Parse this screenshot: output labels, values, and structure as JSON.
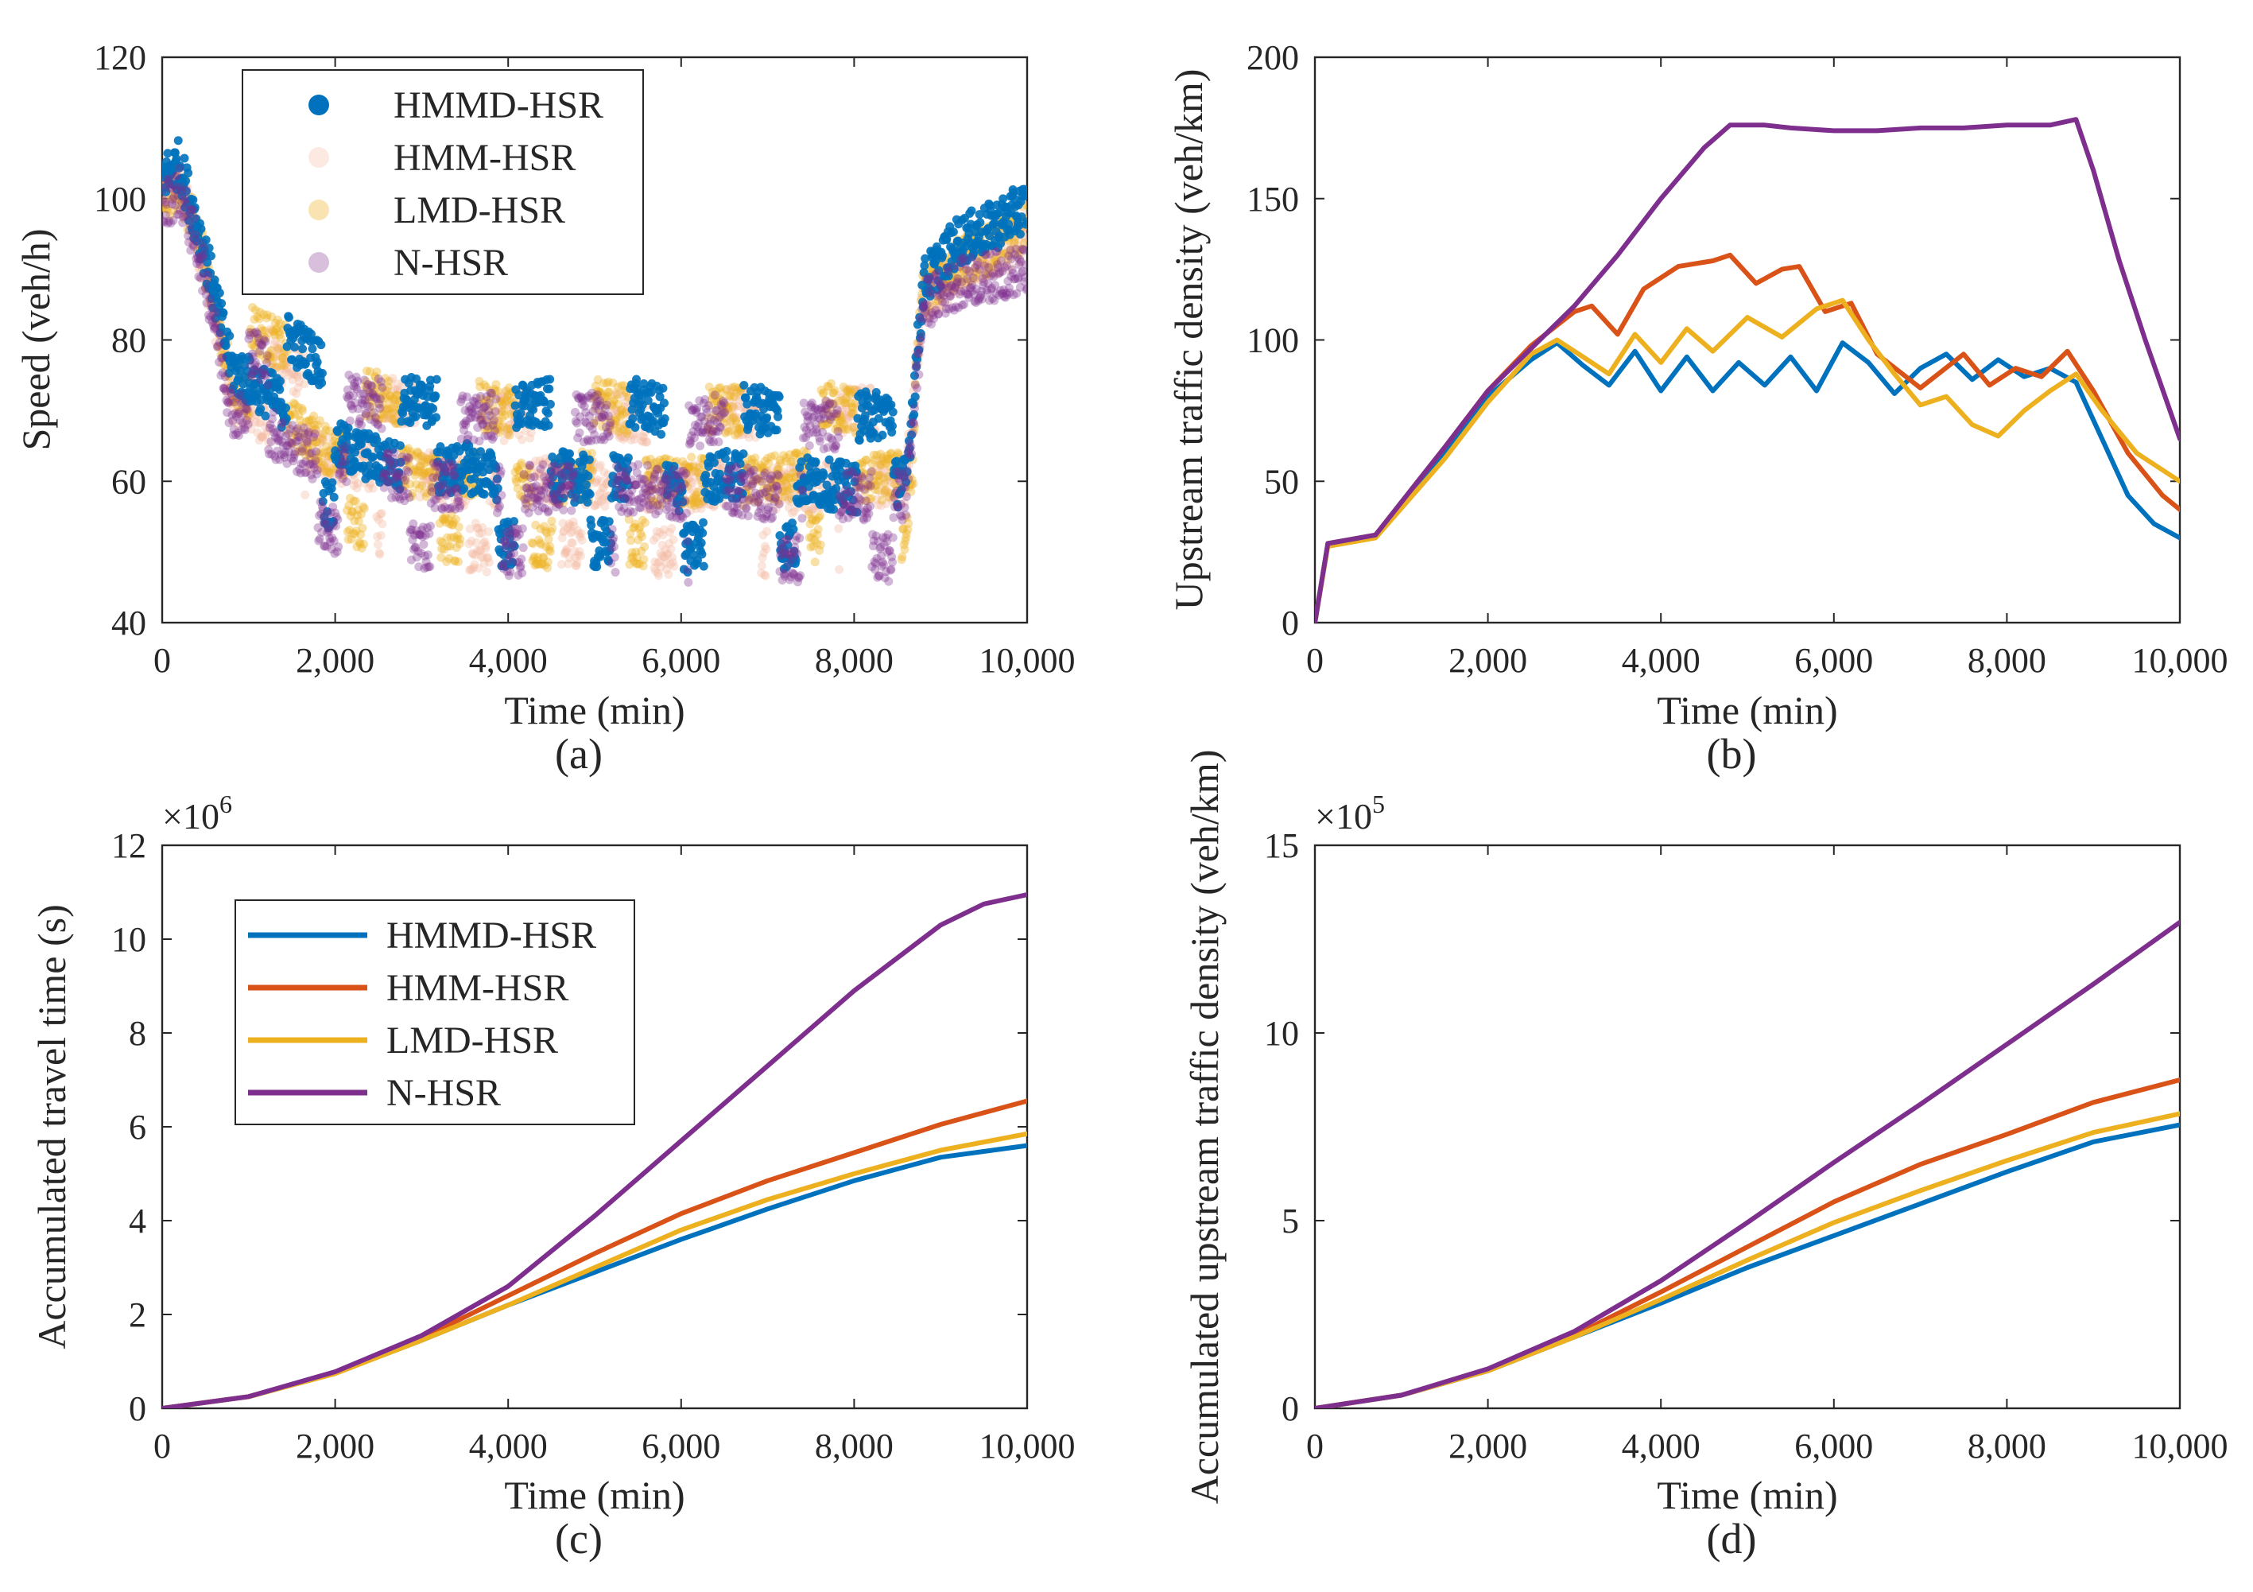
{
  "chart_data": [
    {
      "id": "a",
      "type": "scatter",
      "panel_label": "(a)",
      "xlabel": "Time (min)",
      "ylabel": "Speed (veh/h)",
      "xlim": [
        0,
        10000
      ],
      "ylim": [
        40,
        120
      ],
      "xticks": [
        0,
        2000,
        4000,
        6000,
        8000,
        10000
      ],
      "xtick_labels": [
        "0",
        "2,000",
        "4,000",
        "6,000",
        "8,000",
        "10,000"
      ],
      "yticks": [
        40,
        60,
        80,
        100,
        120
      ],
      "ytick_labels": [
        "40",
        "60",
        "80",
        "100",
        "120"
      ],
      "legend_position": "top-left",
      "series": [
        {
          "name": "HMMD-HSR",
          "color": "#0072BD",
          "x": [
            0,
            200,
            500,
            800,
            1500,
            2000,
            2500,
            3000,
            3500,
            4000,
            4500,
            5000,
            5500,
            6000,
            6500,
            7000,
            7500,
            8000,
            8600,
            8800,
            9200,
            9600,
            10000
          ],
          "y": [
            103,
            105,
            92,
            76,
            70,
            65,
            63,
            61,
            62,
            60,
            61,
            60,
            61,
            59,
            61,
            60,
            60,
            59,
            60,
            88,
            94,
            96,
            99
          ]
        },
        {
          "name": "HMM-HSR",
          "color": "#F4B6A0",
          "x": [
            0,
            200,
            500,
            800,
            1500,
            2000,
            2500,
            3000,
            3500,
            4000,
            4500,
            5000,
            5500,
            6000,
            6500,
            7000,
            7500,
            8000,
            8600,
            8800,
            9200,
            9600,
            10000
          ],
          "y": [
            101,
            103,
            90,
            72,
            66,
            63,
            62,
            61,
            60,
            59,
            60,
            60,
            59,
            59,
            60,
            59,
            59,
            60,
            60,
            86,
            90,
            92,
            95
          ]
        },
        {
          "name": "LMD-HSR",
          "color": "#EDB120",
          "x": [
            0,
            200,
            500,
            800,
            1500,
            2000,
            2500,
            3000,
            3500,
            4000,
            4500,
            5000,
            5500,
            6000,
            6500,
            7000,
            7500,
            8000,
            8600,
            8800,
            9200,
            9600,
            10000
          ],
          "y": [
            100,
            102,
            91,
            74,
            68,
            64,
            62,
            61,
            61,
            60,
            60,
            61,
            60,
            60,
            60,
            60,
            61,
            60,
            61,
            87,
            91,
            93,
            96
          ]
        },
        {
          "name": "N-HSR",
          "color": "#7E2F8E",
          "x": [
            0,
            200,
            500,
            800,
            1500,
            2000,
            2500,
            3000,
            3500,
            4000,
            4500,
            5000,
            5500,
            6000,
            6500,
            7000,
            7500,
            8000,
            8600,
            8800,
            9200,
            9600,
            10000
          ],
          "y": [
            99,
            101,
            89,
            70,
            65,
            62,
            61,
            60,
            59,
            59,
            59,
            59,
            59,
            58,
            59,
            58,
            58,
            58,
            58,
            85,
            88,
            89,
            90
          ]
        }
      ]
    },
    {
      "id": "b",
      "type": "line",
      "panel_label": "(b)",
      "xlabel": "Time (min)",
      "ylabel": "Upstream traffic density (veh/km)",
      "xlim": [
        0,
        10000
      ],
      "ylim": [
        0,
        200
      ],
      "xticks": [
        0,
        2000,
        4000,
        6000,
        8000,
        10000
      ],
      "xtick_labels": [
        "0",
        "2,000",
        "4,000",
        "6,000",
        "8,000",
        "10,000"
      ],
      "yticks": [
        0,
        50,
        100,
        150,
        200
      ],
      "ytick_labels": [
        "0",
        "50",
        "100",
        "150",
        "200"
      ],
      "series": [
        {
          "name": "HMMD-HSR",
          "color": "#0072BD",
          "x": [
            0,
            150,
            700,
            1500,
            2000,
            2500,
            2800,
            3100,
            3400,
            3700,
            4000,
            4300,
            4600,
            4900,
            5200,
            5500,
            5800,
            6100,
            6400,
            6700,
            7000,
            7300,
            7600,
            7900,
            8200,
            8500,
            8800,
            9100,
            9400,
            9700,
            10000
          ],
          "y": [
            0,
            28,
            31,
            60,
            80,
            93,
            99,
            91,
            84,
            96,
            82,
            94,
            82,
            92,
            84,
            94,
            82,
            99,
            92,
            81,
            90,
            95,
            86,
            93,
            87,
            90,
            85,
            65,
            45,
            35,
            30
          ]
        },
        {
          "name": "HMM-HSR",
          "color": "#D95319",
          "x": [
            0,
            150,
            700,
            1500,
            2000,
            2500,
            3000,
            3200,
            3500,
            3800,
            4200,
            4600,
            4800,
            5100,
            5400,
            5600,
            5900,
            6200,
            6500,
            7000,
            7500,
            7800,
            8100,
            8400,
            8700,
            9000,
            9400,
            9800,
            10000
          ],
          "y": [
            0,
            28,
            31,
            62,
            82,
            98,
            110,
            112,
            102,
            118,
            126,
            128,
            130,
            120,
            125,
            126,
            110,
            113,
            95,
            83,
            95,
            84,
            90,
            87,
            96,
            82,
            60,
            45,
            40
          ]
        },
        {
          "name": "LMD-HSR",
          "color": "#EDB120",
          "x": [
            0,
            150,
            700,
            1500,
            2000,
            2500,
            2800,
            3100,
            3400,
            3700,
            4000,
            4300,
            4600,
            5000,
            5400,
            5800,
            6100,
            6400,
            6700,
            7000,
            7300,
            7600,
            7900,
            8200,
            8500,
            8800,
            9100,
            9500,
            10000
          ],
          "y": [
            0,
            27,
            30,
            58,
            78,
            95,
            100,
            94,
            88,
            102,
            92,
            104,
            96,
            108,
            101,
            111,
            114,
            100,
            88,
            77,
            80,
            70,
            66,
            75,
            82,
            88,
            75,
            60,
            50
          ]
        },
        {
          "name": "N-HSR",
          "color": "#7E2F8E",
          "x": [
            0,
            150,
            700,
            1500,
            2000,
            2500,
            3000,
            3500,
            4000,
            4500,
            4800,
            5200,
            5500,
            6000,
            6500,
            7000,
            7500,
            8000,
            8500,
            8800,
            9000,
            9300,
            9600,
            10000
          ],
          "y": [
            0,
            28,
            31,
            62,
            82,
            97,
            112,
            130,
            150,
            168,
            176,
            176,
            175,
            174,
            174,
            175,
            175,
            176,
            176,
            178,
            160,
            128,
            100,
            65
          ]
        }
      ]
    },
    {
      "id": "c",
      "type": "line",
      "panel_label": "(c)",
      "xlabel": "Time (min)",
      "ylabel": "Accumulated travel time (s)",
      "y_multiplier": "×10",
      "y_multiplier_exp": "6",
      "xlim": [
        0,
        10000
      ],
      "ylim": [
        0,
        12
      ],
      "xticks": [
        0,
        2000,
        4000,
        6000,
        8000,
        10000
      ],
      "xtick_labels": [
        "0",
        "2,000",
        "4,000",
        "6,000",
        "8,000",
        "10,000"
      ],
      "yticks": [
        0,
        2,
        4,
        6,
        8,
        10,
        12
      ],
      "ytick_labels": [
        "0",
        "2",
        "4",
        "6",
        "8",
        "10",
        "12"
      ],
      "legend_position": "top-left",
      "series": [
        {
          "name": "HMMD-HSR",
          "color": "#0072BD",
          "x": [
            0,
            1000,
            2000,
            3000,
            4000,
            5000,
            6000,
            7000,
            8000,
            9000,
            10000
          ],
          "y": [
            0,
            0.25,
            0.75,
            1.45,
            2.2,
            2.9,
            3.6,
            4.25,
            4.85,
            5.35,
            5.6
          ]
        },
        {
          "name": "HMM-HSR",
          "color": "#D95319",
          "x": [
            0,
            1000,
            2000,
            3000,
            4000,
            5000,
            6000,
            7000,
            8000,
            9000,
            10000
          ],
          "y": [
            0,
            0.25,
            0.76,
            1.5,
            2.4,
            3.3,
            4.15,
            4.85,
            5.45,
            6.05,
            6.55
          ]
        },
        {
          "name": "LMD-HSR",
          "color": "#EDB120",
          "x": [
            0,
            1000,
            2000,
            3000,
            4000,
            5000,
            6000,
            7000,
            8000,
            9000,
            10000
          ],
          "y": [
            0,
            0.25,
            0.74,
            1.45,
            2.2,
            3.0,
            3.8,
            4.45,
            5.0,
            5.5,
            5.85
          ]
        },
        {
          "name": "N-HSR",
          "color": "#7E2F8E",
          "x": [
            0,
            1000,
            2000,
            3000,
            4000,
            5000,
            6000,
            7000,
            8000,
            9000,
            9500,
            10000
          ],
          "y": [
            0,
            0.25,
            0.78,
            1.55,
            2.6,
            4.1,
            5.7,
            7.3,
            8.9,
            10.3,
            10.75,
            10.95
          ]
        }
      ]
    },
    {
      "id": "d",
      "type": "line",
      "panel_label": "(d)",
      "xlabel": "Time (min)",
      "ylabel": "Accumulated upstream traffic density (veh/km)",
      "y_multiplier": "×10",
      "y_multiplier_exp": "5",
      "xlim": [
        0,
        10000
      ],
      "ylim": [
        0,
        15
      ],
      "xticks": [
        0,
        2000,
        4000,
        6000,
        8000,
        10000
      ],
      "xtick_labels": [
        "0",
        "2,000",
        "4,000",
        "6,000",
        "8,000",
        "10,000"
      ],
      "yticks": [
        0,
        5,
        10,
        15
      ],
      "ytick_labels": [
        "0",
        "5",
        "10",
        "15"
      ],
      "series": [
        {
          "name": "HMMD-HSR",
          "color": "#0072BD",
          "x": [
            0,
            1000,
            2000,
            3000,
            4000,
            5000,
            6000,
            7000,
            8000,
            9000,
            10000
          ],
          "y": [
            0,
            0.35,
            1.0,
            1.9,
            2.8,
            3.75,
            4.6,
            5.45,
            6.3,
            7.1,
            7.55
          ]
        },
        {
          "name": "HMM-HSR",
          "color": "#D95319",
          "x": [
            0,
            1000,
            2000,
            3000,
            4000,
            5000,
            6000,
            7000,
            8000,
            9000,
            10000
          ],
          "y": [
            0,
            0.35,
            1.0,
            1.95,
            3.1,
            4.3,
            5.5,
            6.5,
            7.3,
            8.15,
            8.75
          ]
        },
        {
          "name": "LMD-HSR",
          "color": "#EDB120",
          "x": [
            0,
            1000,
            2000,
            3000,
            4000,
            5000,
            6000,
            7000,
            8000,
            9000,
            10000
          ],
          "y": [
            0,
            0.35,
            1.0,
            1.9,
            2.9,
            3.95,
            4.95,
            5.8,
            6.6,
            7.35,
            7.85
          ]
        },
        {
          "name": "N-HSR",
          "color": "#7E2F8E",
          "x": [
            0,
            1000,
            2000,
            3000,
            4000,
            5000,
            6000,
            7000,
            8000,
            9000,
            10000
          ],
          "y": [
            0,
            0.35,
            1.05,
            2.05,
            3.4,
            4.95,
            6.55,
            8.1,
            9.7,
            11.3,
            12.95
          ]
        }
      ]
    }
  ]
}
